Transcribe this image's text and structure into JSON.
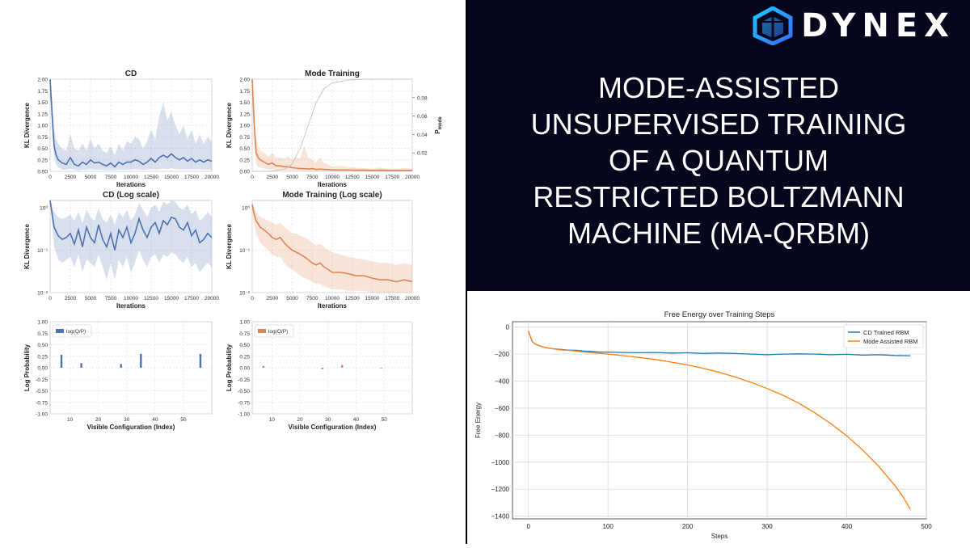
{
  "brand": {
    "name": "DYNEX",
    "logo_icon": "dynex-cube-icon"
  },
  "headline": {
    "lines": [
      "MODE-ASSISTED",
      "UNSUPERVISED TRAINING",
      "OF A QUANTUM",
      "RESTRICTED BOLTZMANN",
      "MACHINE (MA-QRBM)"
    ]
  },
  "colors": {
    "blue": "#4c72b0",
    "orange": "#dd8452",
    "bg_dark": "#06061c",
    "fe_blue": "#1f77b4",
    "fe_orange": "#ff7f0e"
  },
  "chart_data": [
    {
      "id": "cd",
      "type": "line",
      "title": "CD",
      "xlabel": "Iterations",
      "ylabel": "KL Divergence",
      "xlim": [
        0,
        20000
      ],
      "ylim": [
        0,
        2.0
      ],
      "xticks": [
        "0",
        "2500",
        "5000",
        "7500",
        "10000",
        "12500",
        "15000",
        "17500",
        "20000"
      ],
      "yticks": [
        "0.00",
        "0.25",
        "0.50",
        "0.75",
        "1.00",
        "1.25",
        "1.50",
        "1.75",
        "2.00"
      ],
      "grid": true,
      "series": [
        {
          "x": [
            0,
            250,
            500,
            750,
            1000,
            1500,
            2000,
            2500,
            3000,
            3500,
            4000,
            4500,
            5000,
            5500,
            6000,
            6500,
            7000,
            7500,
            8000,
            8500,
            9000,
            9500,
            10000,
            10500,
            11000,
            11500,
            12000,
            12500,
            13000,
            13500,
            14000,
            14500,
            15000,
            15500,
            16000,
            16500,
            17000,
            17500,
            18000,
            18500,
            19000,
            19500,
            20000
          ],
          "y": [
            2.0,
            1.2,
            0.55,
            0.35,
            0.25,
            0.18,
            0.15,
            0.3,
            0.15,
            0.12,
            0.2,
            0.15,
            0.25,
            0.18,
            0.2,
            0.15,
            0.12,
            0.18,
            0.1,
            0.2,
            0.15,
            0.2,
            0.2,
            0.25,
            0.22,
            0.15,
            0.2,
            0.28,
            0.2,
            0.3,
            0.35,
            0.3,
            0.38,
            0.3,
            0.25,
            0.3,
            0.22,
            0.28,
            0.2,
            0.25,
            0.2,
            0.25,
            0.22
          ],
          "lower": [
            2.0,
            0.9,
            0.3,
            0.15,
            0.08,
            0.04,
            0.03,
            0.06,
            0.03,
            0.02,
            0.04,
            0.03,
            0.05,
            0.03,
            0.04,
            0.03,
            0.02,
            0.03,
            0.02,
            0.04,
            0.03,
            0.04,
            0.04,
            0.05,
            0.04,
            0.03,
            0.04,
            0.05,
            0.04,
            0.05,
            0.06,
            0.05,
            0.07,
            0.05,
            0.04,
            0.05,
            0.04,
            0.05,
            0.04,
            0.05,
            0.04,
            0.04,
            0.04
          ],
          "upper": [
            2.0,
            1.6,
            0.9,
            0.7,
            0.6,
            0.5,
            0.45,
            0.8,
            0.5,
            0.45,
            0.6,
            0.45,
            0.7,
            0.5,
            0.6,
            0.45,
            0.4,
            0.55,
            0.35,
            0.6,
            0.45,
            0.65,
            0.6,
            0.75,
            0.7,
            0.5,
            0.65,
            0.9,
            0.7,
            1.2,
            1.5,
            1.1,
            1.3,
            1.0,
            0.8,
            1.0,
            0.7,
            0.9,
            0.6,
            0.8,
            0.6,
            0.75,
            0.65
          ]
        }
      ]
    },
    {
      "id": "mode",
      "type": "line",
      "title": "Mode Training",
      "xlabel": "Iterations",
      "ylabel": "KL Divergence",
      "y2label": "P_mode",
      "xlim": [
        0,
        20000
      ],
      "ylim": [
        0,
        2.0
      ],
      "y2lim": [
        0,
        0.1
      ],
      "xticks": [
        "0",
        "2500",
        "5000",
        "7500",
        "10000",
        "12500",
        "15000",
        "17500",
        "20000"
      ],
      "yticks": [
        "0.00",
        "0.25",
        "0.50",
        "0.75",
        "1.00",
        "1.25",
        "1.50",
        "1.75",
        "2.00"
      ],
      "y2ticks": [
        "0.02",
        "0.04",
        "0.06",
        "0.08"
      ],
      "grid": true,
      "series": [
        {
          "x": [
            0,
            250,
            500,
            750,
            1000,
            1500,
            2000,
            2500,
            3000,
            3500,
            4000,
            4500,
            5000,
            5500,
            6000,
            6500,
            7000,
            7500,
            8000,
            8500,
            9000,
            9500,
            10000,
            11000,
            12000,
            13000,
            14000,
            15000,
            16000,
            17000,
            18000,
            19000,
            20000
          ],
          "y": [
            2.0,
            1.0,
            0.4,
            0.3,
            0.25,
            0.2,
            0.15,
            0.18,
            0.12,
            0.12,
            0.1,
            0.1,
            0.08,
            0.07,
            0.06,
            0.06,
            0.05,
            0.06,
            0.04,
            0.05,
            0.04,
            0.04,
            0.03,
            0.03,
            0.03,
            0.025,
            0.025,
            0.02,
            0.025,
            0.02,
            0.02,
            0.02,
            0.02
          ],
          "lower": [
            2.0,
            0.7,
            0.15,
            0.1,
            0.08,
            0.06,
            0.04,
            0.05,
            0.03,
            0.03,
            0.02,
            0.02,
            0.02,
            0.015,
            0.015,
            0.01,
            0.01,
            0.01,
            0.01,
            0.01,
            0.01,
            0.01,
            0.008,
            0.008,
            0.007,
            0.006,
            0.006,
            0.005,
            0.006,
            0.005,
            0.005,
            0.005,
            0.005
          ],
          "upper": [
            2.0,
            1.4,
            0.7,
            0.55,
            0.45,
            0.4,
            0.32,
            0.4,
            0.3,
            0.3,
            0.28,
            0.32,
            0.25,
            0.3,
            0.28,
            0.55,
            0.3,
            0.25,
            0.2,
            0.3,
            0.18,
            0.15,
            0.1,
            0.12,
            0.09,
            0.08,
            0.07,
            0.06,
            0.08,
            0.06,
            0.06,
            0.07,
            0.06
          ]
        },
        {
          "name": "P_mode",
          "x": [
            0,
            2000,
            4000,
            5000,
            6000,
            7000,
            8000,
            9000,
            10000,
            12000,
            14000,
            16000,
            18000,
            20000
          ],
          "y": [
            0,
            0,
            0.002,
            0.008,
            0.025,
            0.05,
            0.075,
            0.09,
            0.096,
            0.099,
            0.1,
            0.1,
            0.1,
            0.1
          ]
        }
      ]
    },
    {
      "id": "cd-log",
      "type": "line",
      "title": "CD (Log scale)",
      "xlabel": "Iterations",
      "ylabel": "KL Divergence",
      "yscale": "log",
      "xlim": [
        0,
        20000
      ],
      "ylim": [
        0.01,
        1.5
      ],
      "xticks": [
        "0",
        "2500",
        "5000",
        "7500",
        "10000",
        "12500",
        "15000",
        "17500",
        "20000"
      ],
      "yticks": [
        "10⁰",
        "10⁻¹",
        "10⁻²"
      ],
      "grid": true,
      "series": [
        {
          "x": [
            0,
            250,
            500,
            1000,
            1500,
            2000,
            2500,
            3000,
            3500,
            4000,
            4500,
            5000,
            5500,
            6000,
            6500,
            7000,
            7500,
            8000,
            8500,
            9000,
            9500,
            10000,
            10500,
            11000,
            11500,
            12000,
            12500,
            13000,
            13500,
            14000,
            14500,
            15000,
            15500,
            16000,
            16500,
            17000,
            17500,
            18000,
            18500,
            19000,
            19500,
            20000
          ],
          "y": [
            1.5,
            0.7,
            0.35,
            0.22,
            0.18,
            0.2,
            0.25,
            0.14,
            0.3,
            0.12,
            0.35,
            0.2,
            0.15,
            0.4,
            0.18,
            0.12,
            0.25,
            0.1,
            0.3,
            0.2,
            0.35,
            0.15,
            0.25,
            0.55,
            0.3,
            0.2,
            0.35,
            0.45,
            0.25,
            0.5,
            0.4,
            0.6,
            0.55,
            0.35,
            0.3,
            0.45,
            0.22,
            0.3,
            0.15,
            0.18,
            0.25,
            0.2
          ],
          "lower": [
            1.4,
            0.4,
            0.12,
            0.06,
            0.05,
            0.06,
            0.07,
            0.04,
            0.08,
            0.03,
            0.06,
            0.05,
            0.04,
            0.08,
            0.04,
            0.02,
            0.05,
            0.02,
            0.06,
            0.04,
            0.07,
            0.03,
            0.05,
            0.1,
            0.06,
            0.04,
            0.07,
            0.08,
            0.05,
            0.08,
            0.07,
            0.09,
            0.08,
            0.06,
            0.05,
            0.07,
            0.04,
            0.05,
            0.03,
            0.04,
            0.05,
            0.04
          ],
          "upper": [
            1.6,
            1.1,
            0.8,
            0.6,
            0.55,
            0.6,
            0.7,
            0.5,
            0.8,
            0.45,
            0.9,
            0.6,
            0.5,
            1.0,
            0.55,
            0.45,
            0.7,
            0.4,
            0.8,
            0.6,
            0.9,
            0.5,
            0.7,
            1.3,
            0.9,
            0.6,
            1.0,
            1.2,
            0.8,
            1.4,
            1.2,
            1.5,
            1.4,
            1.0,
            0.9,
            1.2,
            0.7,
            0.9,
            0.5,
            0.6,
            0.8,
            0.6
          ]
        }
      ]
    },
    {
      "id": "mode-log",
      "type": "line",
      "title": "Mode Training (Log scale)",
      "xlabel": "Iterations",
      "ylabel": "KL Divergence",
      "yscale": "log",
      "xlim": [
        0,
        20000
      ],
      "ylim": [
        0.01,
        1.5
      ],
      "xticks": [
        "0",
        "2500",
        "5000",
        "7500",
        "10000",
        "12500",
        "15000",
        "17500",
        "20000"
      ],
      "yticks": [
        "10⁰",
        "10⁻¹",
        "10⁻²"
      ],
      "grid": true,
      "series": [
        {
          "x": [
            0,
            250,
            500,
            1000,
            1500,
            2000,
            2500,
            3000,
            3500,
            4000,
            4500,
            5000,
            5500,
            6000,
            6500,
            7000,
            7500,
            8000,
            8500,
            9000,
            9500,
            10000,
            11000,
            12000,
            13000,
            14000,
            15000,
            16000,
            17000,
            18000,
            19000,
            20000
          ],
          "y": [
            1.2,
            0.7,
            0.5,
            0.35,
            0.3,
            0.25,
            0.2,
            0.18,
            0.2,
            0.15,
            0.12,
            0.1,
            0.09,
            0.08,
            0.07,
            0.06,
            0.05,
            0.045,
            0.05,
            0.04,
            0.035,
            0.03,
            0.03,
            0.028,
            0.025,
            0.025,
            0.022,
            0.02,
            0.02,
            0.018,
            0.02,
            0.018
          ],
          "lower": [
            1.0,
            0.4,
            0.25,
            0.15,
            0.12,
            0.1,
            0.08,
            0.07,
            0.07,
            0.05,
            0.04,
            0.035,
            0.03,
            0.025,
            0.022,
            0.02,
            0.018,
            0.016,
            0.016,
            0.014,
            0.013,
            0.012,
            0.012,
            0.011,
            0.011,
            0.011,
            0.01,
            0.01,
            0.01,
            0.01,
            0.01,
            0.01
          ],
          "upper": [
            1.4,
            1.0,
            0.8,
            0.6,
            0.55,
            0.5,
            0.45,
            0.4,
            0.45,
            0.35,
            0.3,
            0.25,
            0.25,
            0.22,
            0.2,
            0.18,
            0.15,
            0.13,
            0.14,
            0.12,
            0.1,
            0.09,
            0.08,
            0.07,
            0.065,
            0.06,
            0.055,
            0.05,
            0.05,
            0.045,
            0.05,
            0.045
          ]
        }
      ]
    },
    {
      "id": "cd-logprob",
      "type": "bar",
      "title": "",
      "xlabel": "Visible Configuration (Index)",
      "ylabel": "Log Probability",
      "xlim": [
        3,
        60
      ],
      "ylim": [
        -1.0,
        1.0
      ],
      "xticks": [
        "10",
        "20",
        "30",
        "40",
        "50"
      ],
      "yticks": [
        "1.00",
        "0.75",
        "0.50",
        "0.25",
        "0.00",
        "-0.25",
        "-0.50",
        "-0.75",
        "-1.00"
      ],
      "legend": "log(Q/P)",
      "legend_position": "top-left",
      "bars": [
        {
          "x": 7,
          "y": 0.28
        },
        {
          "x": 14,
          "y": 0.1
        },
        {
          "x": 28,
          "y": 0.08
        },
        {
          "x": 35,
          "y": 0.3
        },
        {
          "x": 56,
          "y": 0.3
        }
      ]
    },
    {
      "id": "mode-logprob",
      "type": "bar",
      "title": "",
      "xlabel": "Visible Configuration (Index)",
      "ylabel": "Log Probability",
      "xlim": [
        3,
        60
      ],
      "ylim": [
        -1.0,
        1.0
      ],
      "xticks": [
        "10",
        "20",
        "30",
        "40",
        "50"
      ],
      "yticks": [
        "1.00",
        "0.75",
        "0.50",
        "0.25",
        "0.00",
        "-0.25",
        "-0.50",
        "-0.75",
        "-1.00"
      ],
      "legend": "log(Q/P)",
      "legend_position": "top-left",
      "bars": [
        {
          "x": 7,
          "y": 0.04
        },
        {
          "x": 28,
          "y": -0.03
        },
        {
          "x": 35,
          "y": 0.06
        },
        {
          "x": 49,
          "y": -0.01
        }
      ]
    },
    {
      "id": "free-energy",
      "type": "line",
      "title": "Free Energy over Training Steps",
      "xlabel": "Steps",
      "ylabel": "Free Energy",
      "xlim": [
        -20,
        500
      ],
      "ylim": [
        -1420,
        40
      ],
      "xticks": [
        "0",
        "100",
        "200",
        "300",
        "400",
        "500"
      ],
      "yticks": [
        "0",
        "−200",
        "−400",
        "−600",
        "−800",
        "−1000",
        "−1200",
        "−1400"
      ],
      "grid": true,
      "legend_position": "top-right",
      "series": [
        {
          "name": "CD Trained RBM",
          "x": [
            0,
            5,
            10,
            20,
            30,
            40,
            50,
            60,
            70,
            80,
            90,
            100,
            120,
            140,
            160,
            180,
            200,
            220,
            240,
            260,
            280,
            300,
            320,
            340,
            360,
            380,
            400,
            420,
            440,
            460,
            480
          ],
          "y": [
            -30,
            -110,
            -130,
            -150,
            -160,
            -165,
            -170,
            -172,
            -178,
            -180,
            -185,
            -185,
            -188,
            -190,
            -188,
            -192,
            -190,
            -195,
            -192,
            -196,
            -200,
            -205,
            -200,
            -198,
            -200,
            -205,
            -202,
            -208,
            -205,
            -210,
            -212
          ]
        },
        {
          "name": "Mode Assisted RBM",
          "x": [
            0,
            5,
            10,
            20,
            30,
            40,
            50,
            60,
            70,
            80,
            90,
            100,
            120,
            140,
            160,
            180,
            200,
            220,
            240,
            260,
            280,
            300,
            320,
            340,
            360,
            380,
            400,
            420,
            440,
            460,
            470,
            480
          ],
          "y": [
            -30,
            -110,
            -130,
            -150,
            -160,
            -168,
            -172,
            -178,
            -185,
            -190,
            -195,
            -200,
            -212,
            -225,
            -240,
            -260,
            -280,
            -305,
            -335,
            -370,
            -410,
            -455,
            -505,
            -565,
            -635,
            -715,
            -805,
            -910,
            -1030,
            -1170,
            -1250,
            -1350
          ]
        }
      ]
    }
  ]
}
